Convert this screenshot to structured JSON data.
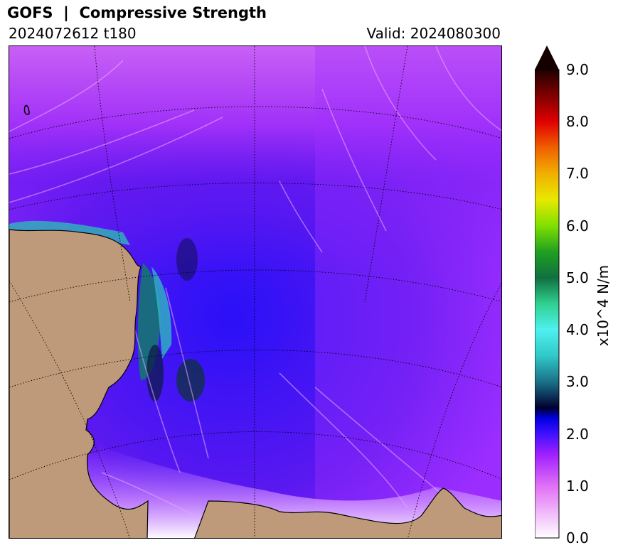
{
  "header": {
    "title": "GOFS  |  Compressive Strength",
    "run": "2024072612 t180",
    "valid": "Valid: 2024080300"
  },
  "colorbar": {
    "label": "x10^4 N/m",
    "ticks": [
      "0.0",
      "1.0",
      "2.0",
      "3.0",
      "4.0",
      "5.0",
      "6.0",
      "7.0",
      "8.0",
      "9.0"
    ],
    "range": [
      0,
      9
    ],
    "extend": "max",
    "stops": [
      {
        "v": 0.0,
        "c": "#ffffff"
      },
      {
        "v": 1.0,
        "c": "#e070f5"
      },
      {
        "v": 1.6,
        "c": "#a020ff"
      },
      {
        "v": 2.0,
        "c": "#4010ff"
      },
      {
        "v": 2.3,
        "c": "#0000e0"
      },
      {
        "v": 2.5,
        "c": "#000030"
      },
      {
        "v": 3.0,
        "c": "#1a7088"
      },
      {
        "v": 3.5,
        "c": "#30c8c8"
      },
      {
        "v": 4.0,
        "c": "#50f0f0"
      },
      {
        "v": 4.5,
        "c": "#30d090"
      },
      {
        "v": 5.0,
        "c": "#107040"
      },
      {
        "v": 5.5,
        "c": "#20a020"
      },
      {
        "v": 6.0,
        "c": "#80e000"
      },
      {
        "v": 6.5,
        "c": "#e8e800"
      },
      {
        "v": 7.0,
        "c": "#f0b000"
      },
      {
        "v": 7.5,
        "c": "#f06000"
      },
      {
        "v": 8.0,
        "c": "#e00000"
      },
      {
        "v": 8.5,
        "c": "#800000"
      },
      {
        "v": 9.0,
        "c": "#200000"
      }
    ],
    "arrow_color": "#150000"
  },
  "map": {
    "land_color": "#bf9a7a",
    "ice_base_color": "#5a18f0"
  }
}
